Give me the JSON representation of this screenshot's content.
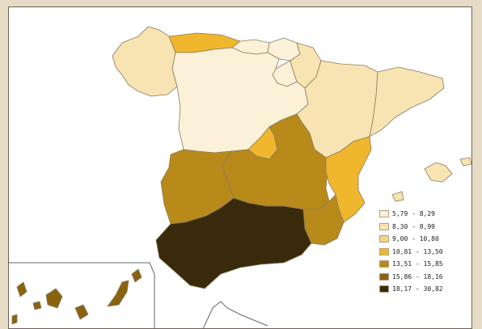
{
  "legend": {
    "items": [
      {
        "label": "5,79 - 8,29",
        "color": "#fbf1d8"
      },
      {
        "label": "8,30 - 8,99",
        "color": "#f8e4b2"
      },
      {
        "label": "9,00 - 10,80",
        "color": "#f5d48a"
      },
      {
        "label": "10,81 - 13,50",
        "color": "#f0b72e"
      },
      {
        "label": "13,51 - 15,85",
        "color": "#b88a1a"
      },
      {
        "label": "15,86 - 18,16",
        "color": "#8a6310"
      },
      {
        "label": "18,17 - 30,82",
        "color": "#3a2a0c"
      }
    ]
  },
  "colors": {
    "outside": "#ffffff",
    "frame": "#e6dcc6",
    "border": "#8a7a5a"
  }
}
